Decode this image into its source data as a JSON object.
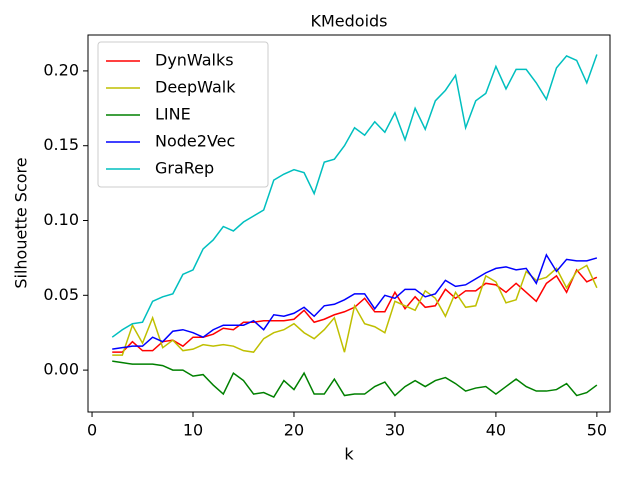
{
  "chart_data": {
    "type": "line",
    "title": "KMedoids",
    "xlabel": "k",
    "ylabel": "Silhouette Score",
    "x": [
      2,
      3,
      4,
      5,
      6,
      7,
      8,
      9,
      10,
      11,
      12,
      13,
      14,
      15,
      16,
      17,
      18,
      19,
      20,
      21,
      22,
      23,
      24,
      25,
      26,
      27,
      28,
      29,
      30,
      31,
      32,
      33,
      34,
      35,
      36,
      37,
      38,
      39,
      40,
      41,
      42,
      43,
      44,
      45,
      46,
      47,
      48,
      49,
      50
    ],
    "series": [
      {
        "name": "DynWalks",
        "color": "#ff0000",
        "values": [
          0.012,
          0.012,
          0.019,
          0.013,
          0.013,
          0.019,
          0.02,
          0.016,
          0.022,
          0.022,
          0.024,
          0.028,
          0.027,
          0.032,
          0.032,
          0.033,
          0.033,
          0.033,
          0.034,
          0.04,
          0.032,
          0.034,
          0.037,
          0.039,
          0.042,
          0.048,
          0.039,
          0.039,
          0.052,
          0.041,
          0.049,
          0.042,
          0.043,
          0.054,
          0.048,
          0.053,
          0.053,
          0.058,
          0.057,
          0.052,
          0.058,
          0.052,
          0.046,
          0.058,
          0.063,
          0.052,
          0.067,
          0.059,
          0.062
        ]
      },
      {
        "name": "DeepWalk",
        "color": "#bfbf00",
        "values": [
          0.01,
          0.01,
          0.03,
          0.018,
          0.035,
          0.015,
          0.02,
          0.013,
          0.014,
          0.017,
          0.016,
          0.017,
          0.016,
          0.013,
          0.012,
          0.021,
          0.025,
          0.027,
          0.031,
          0.025,
          0.021,
          0.027,
          0.035,
          0.012,
          0.043,
          0.031,
          0.029,
          0.025,
          0.046,
          0.043,
          0.04,
          0.053,
          0.048,
          0.036,
          0.052,
          0.042,
          0.043,
          0.063,
          0.059,
          0.045,
          0.047,
          0.066,
          0.06,
          0.062,
          0.068,
          0.055,
          0.066,
          0.07,
          0.055
        ]
      },
      {
        "name": "LINE",
        "color": "#008000",
        "values": [
          0.006,
          0.005,
          0.004,
          0.004,
          0.004,
          0.003,
          0.0,
          0.0,
          -0.004,
          -0.003,
          -0.01,
          -0.016,
          -0.002,
          -0.007,
          -0.016,
          -0.015,
          -0.018,
          -0.007,
          -0.013,
          -0.002,
          -0.016,
          -0.016,
          -0.006,
          -0.017,
          -0.016,
          -0.016,
          -0.011,
          -0.008,
          -0.017,
          -0.011,
          -0.007,
          -0.011,
          -0.007,
          -0.005,
          -0.009,
          -0.014,
          -0.012,
          -0.011,
          -0.016,
          -0.011,
          -0.006,
          -0.011,
          -0.014,
          -0.014,
          -0.013,
          -0.009,
          -0.017,
          -0.015,
          -0.01
        ]
      },
      {
        "name": "Node2Vec",
        "color": "#0000ff",
        "values": [
          0.014,
          0.015,
          0.016,
          0.016,
          0.022,
          0.019,
          0.026,
          0.027,
          0.025,
          0.022,
          0.027,
          0.03,
          0.03,
          0.03,
          0.033,
          0.027,
          0.037,
          0.036,
          0.038,
          0.042,
          0.036,
          0.043,
          0.044,
          0.047,
          0.051,
          0.051,
          0.041,
          0.05,
          0.048,
          0.054,
          0.054,
          0.049,
          0.051,
          0.06,
          0.056,
          0.057,
          0.061,
          0.065,
          0.068,
          0.069,
          0.067,
          0.068,
          0.058,
          0.077,
          0.066,
          0.074,
          0.073,
          0.073,
          0.075
        ]
      },
      {
        "name": "GraRep",
        "color": "#00bfbf",
        "values": [
          0.022,
          0.027,
          0.031,
          0.032,
          0.046,
          0.049,
          0.051,
          0.064,
          0.067,
          0.081,
          0.087,
          0.096,
          0.093,
          0.099,
          0.103,
          0.107,
          0.127,
          0.131,
          0.134,
          0.132,
          0.118,
          0.139,
          0.141,
          0.15,
          0.162,
          0.157,
          0.166,
          0.159,
          0.172,
          0.154,
          0.175,
          0.161,
          0.18,
          0.187,
          0.197,
          0.162,
          0.18,
          0.185,
          0.203,
          0.188,
          0.201,
          0.201,
          0.192,
          0.181,
          0.202,
          0.21,
          0.207,
          0.192,
          0.211
        ]
      }
    ],
    "xlim": [
      -0.4,
      51.3
    ],
    "ylim": [
      -0.028,
      0.224
    ],
    "xticks": [
      0,
      10,
      20,
      30,
      40,
      50
    ],
    "yticks": [
      {
        "value": 0,
        "label": "0.00"
      },
      {
        "value": 0.05,
        "label": "0.05"
      },
      {
        "value": 0.1,
        "label": "0.10"
      },
      {
        "value": 0.15,
        "label": "0.15"
      },
      {
        "value": 0.2,
        "label": "0.20"
      }
    ],
    "legend": "upper left",
    "grid": false
  }
}
